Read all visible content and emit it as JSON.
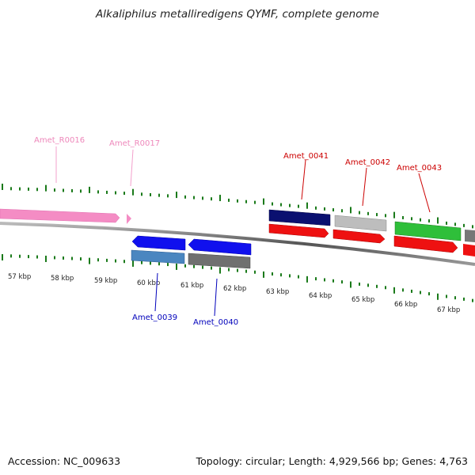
{
  "title": "Alkaliphilus metalliredigens QYMF, complete genome",
  "accession": "Accession: NC_009633",
  "summary": "Topology: circular; Length: 4,929,566 bp; Genes: 4,763",
  "colors": {
    "rna": "#f48cc4",
    "rna_label": "#ee88bb",
    "plus_label": "#cc0000",
    "minus_label": "#0000bb",
    "tick": "#1a7a1a"
  },
  "kbp_labels": [
    "57 kbp",
    "58 kbp",
    "59 kbp",
    "60 kbp",
    "61 kbp",
    "62 kbp",
    "63 kbp",
    "64 kbp",
    "65 kbp",
    "66 kbp",
    "67 kbp"
  ],
  "gene_labels": {
    "rna": [
      "Amet_R0016",
      "Amet_R0017"
    ],
    "plus": [
      "Amet_0041",
      "Amet_0042",
      "Amet_0043"
    ],
    "minus": [
      "Amet_0039",
      "Amet_0040"
    ]
  }
}
